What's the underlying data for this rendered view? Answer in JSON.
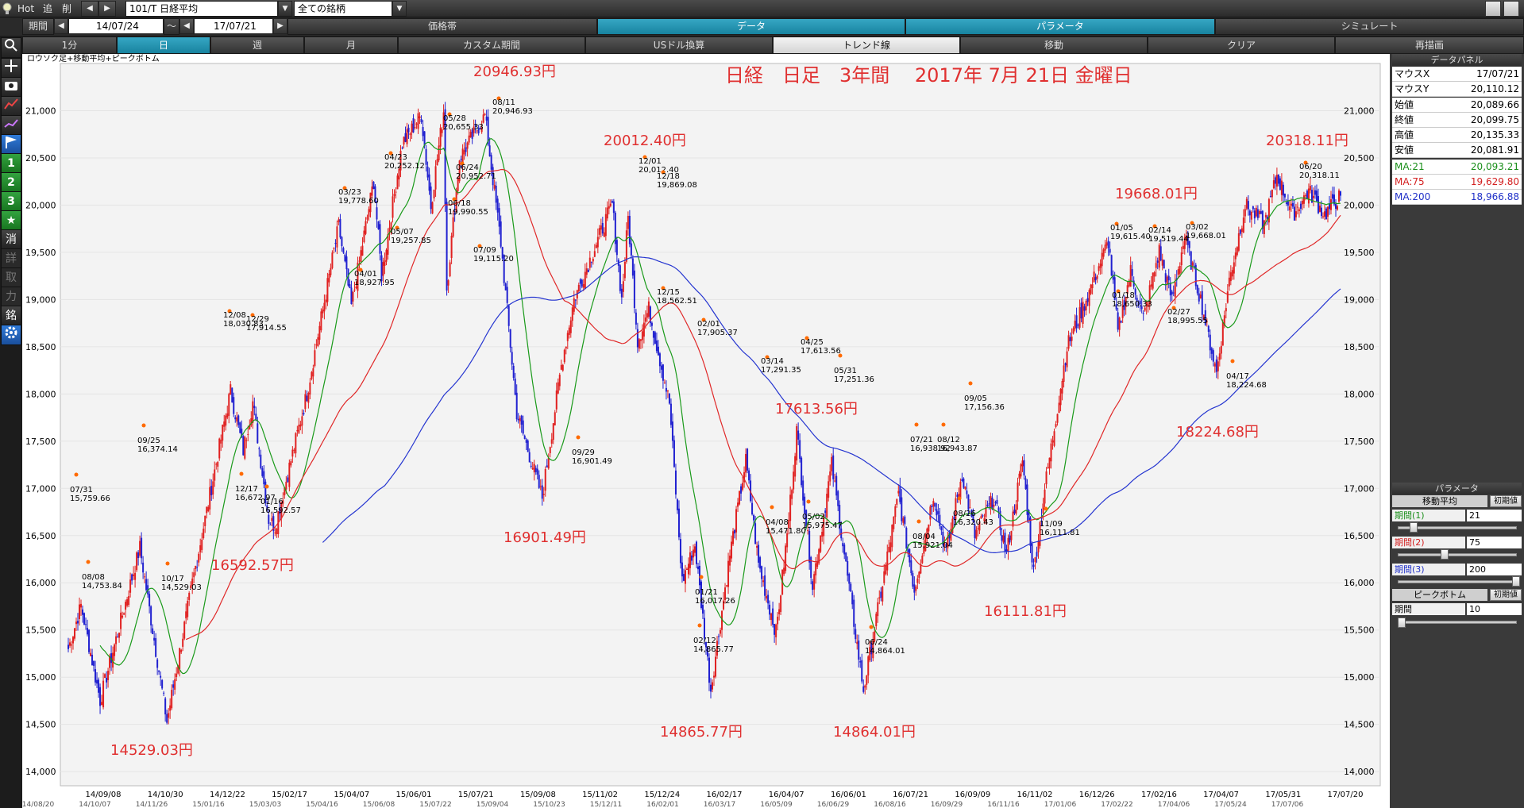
{
  "topbar": {
    "hot": "Hot",
    "prev": "追",
    "back": "削",
    "symbol": "101/T 日経平均",
    "universe": "全ての銘柄"
  },
  "range": {
    "label": "期間",
    "from": "14/07/24",
    "tilde": "～",
    "to": "17/07/21"
  },
  "menu1": [
    "価格帯",
    "データ",
    "パラメータ",
    "シミュレート"
  ],
  "menu2": [
    "1分",
    "日",
    "週",
    "月",
    "カスタム期間",
    "USドル換算",
    "トレンド線",
    "移動",
    "クリア",
    "再描画"
  ],
  "lefttools": [
    "search-icon",
    "crosshair-icon",
    "camera-icon",
    "trend-icon",
    "line-icon",
    "flag-icon",
    "1",
    "2",
    "3",
    "★",
    "消",
    "詳",
    "取",
    "力",
    "銘",
    "gear-icon"
  ],
  "chart": {
    "subtitle": "ロウソク足+移動平均+ピークボトム",
    "title": "日経　日足　3年間　 2017年 7月 21日 金曜日",
    "y_ticks": [
      "21,000",
      "20,500",
      "20,000",
      "19,500",
      "19,000",
      "18,500",
      "18,000",
      "17,500",
      "17,000",
      "16,500",
      "16,000",
      "15,500",
      "15,000",
      "14,500",
      "14,000"
    ],
    "x_ticks": [
      "14/09/08",
      "14/10/30",
      "14/12/22",
      "15/02/17",
      "15/04/07",
      "15/06/01",
      "15/07/21",
      "15/09/08",
      "15/11/02",
      "15/12/24",
      "16/02/17",
      "16/04/07",
      "16/06/01",
      "16/07/21",
      "16/09/09",
      "16/11/02",
      "16/12/26",
      "17/02/16",
      "17/04/07",
      "17/05/31",
      "17/07/20"
    ],
    "x_ticks_bottom": [
      "14/08/20",
      "14/10/07",
      "14/11/26",
      "15/01/16",
      "15/03/03",
      "15/04/16",
      "15/06/08",
      "15/07/22",
      "15/09/04",
      "15/10/23",
      "15/12/11",
      "16/02/01",
      "16/03/17",
      "16/05/09",
      "16/06/29",
      "16/08/16",
      "16/09/29",
      "16/11/16",
      "17/01/06",
      "17/02/22",
      "17/04/06",
      "17/05/24",
      "17/07/06"
    ],
    "big_labels": [
      {
        "t": "20946.93円"
      },
      {
        "t": "20012.40円"
      },
      {
        "t": "17613.56円"
      },
      {
        "t": "19668.01円"
      },
      {
        "t": "20318.11円"
      },
      {
        "t": "16592.57円"
      },
      {
        "t": "16901.49円"
      },
      {
        "t": "14529.03円"
      },
      {
        "t": "14865.77円"
      },
      {
        "t": "14864.01円"
      },
      {
        "t": "16111.81円"
      },
      {
        "t": "18224.68円"
      }
    ],
    "peaks": [
      {
        "d": "07/31",
        "v": "15,759.66"
      },
      {
        "d": "08/08",
        "v": "14,753.84"
      },
      {
        "d": "09/25",
        "v": "16,374.14"
      },
      {
        "d": "10/17",
        "v": "14,529.03"
      },
      {
        "d": "12/08",
        "v": "18,030.83"
      },
      {
        "d": "12/29",
        "v": "17,914.55"
      },
      {
        "d": "12/17",
        "v": "16,672.97"
      },
      {
        "d": "01/16",
        "v": "16,592.57"
      },
      {
        "d": "03/23",
        "v": "19,778.60"
      },
      {
        "d": "04/01",
        "v": "18,927.95"
      },
      {
        "d": "04/23",
        "v": "20,252.12"
      },
      {
        "d": "05/07",
        "v": "19,257.85"
      },
      {
        "d": "05/28",
        "v": "20,655.33"
      },
      {
        "d": "06/24",
        "v": "20,952.71"
      },
      {
        "d": "06/18",
        "v": "19,990.55"
      },
      {
        "d": "07/09",
        "v": "19,115.20"
      },
      {
        "d": "08/11",
        "v": "20,946.93"
      },
      {
        "d": "09/29",
        "v": "16,901.49"
      },
      {
        "d": "12/01",
        "v": "20,012.40"
      },
      {
        "d": "12/18",
        "v": "19,869.08"
      },
      {
        "d": "12/15",
        "v": "18,562.51"
      },
      {
        "d": "02/01",
        "v": "17,905.37"
      },
      {
        "d": "01/21",
        "v": "16,017.26"
      },
      {
        "d": "02/12",
        "v": "14,865.77"
      },
      {
        "d": "03/14",
        "v": "17,291.35"
      },
      {
        "d": "04/08",
        "v": "15,471.80"
      },
      {
        "d": "04/25",
        "v": "17,613.56"
      },
      {
        "d": "05/02",
        "v": "15,975.47"
      },
      {
        "d": "05/31",
        "v": "17,251.36"
      },
      {
        "d": "06/24",
        "v": "14,864.01"
      },
      {
        "d": "07/21",
        "v": "16,938.92"
      },
      {
        "d": "08/04",
        "v": "15,921.04"
      },
      {
        "d": "08/12",
        "v": "16,943.87"
      },
      {
        "d": "08/26",
        "v": "16,320.43"
      },
      {
        "d": "09/05",
        "v": "17,156.36"
      },
      {
        "d": "11/09",
        "v": "16,111.81"
      },
      {
        "d": "01/05",
        "v": "19,615.40"
      },
      {
        "d": "01/18",
        "v": "18,650.33"
      },
      {
        "d": "02/14",
        "v": "19,519.44"
      },
      {
        "d": "03/02",
        "v": "19,668.01"
      },
      {
        "d": "02/27",
        "v": "18,995.55"
      },
      {
        "d": "04/17",
        "v": "18,224.68"
      },
      {
        "d": "06/20",
        "v": "20,318.11"
      }
    ]
  },
  "panel": {
    "data_head": "データパネル",
    "rows": [
      {
        "k": "マウスX",
        "v": "17/07/21"
      },
      {
        "k": "マウスY",
        "v": "20,110.12"
      },
      {
        "k": "始値",
        "v": "20,089.66"
      },
      {
        "k": "終値",
        "v": "20,099.75"
      },
      {
        "k": "高値",
        "v": "20,135.33"
      },
      {
        "k": "安値",
        "v": "20,081.91"
      }
    ],
    "ma": [
      {
        "k": "MA:21",
        "v": "20,093.21",
        "color": "#1a8f1a"
      },
      {
        "k": "MA:75",
        "v": "19,629.80",
        "color": "#d42020"
      },
      {
        "k": "MA:200",
        "v": "18,966.88",
        "color": "#2030c8"
      }
    ],
    "param_head": "パラメータ",
    "ma_head": "移動平均",
    "init": "初期値",
    "periods": [
      {
        "k": "期間(1)",
        "v": "21",
        "color": "#1a8f1a"
      },
      {
        "k": "期間(2)",
        "v": "75",
        "color": "#d42020"
      },
      {
        "k": "期間(3)",
        "v": "200",
        "color": "#2030c8"
      }
    ],
    "pb_head": "ピークボトム",
    "pb_label": "期間",
    "pb_value": "10"
  }
}
